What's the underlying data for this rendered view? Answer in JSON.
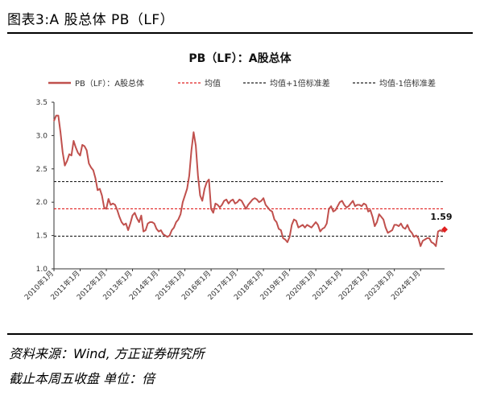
{
  "figure_title": "图表3:A 股总体 PB（LF）",
  "source_line": "资料来源：Wind, 方正证券研究所",
  "note_line": "截止本周五收盘 单位：倍",
  "colors": {
    "pb_line": "#C0504D",
    "mean_line": "#E02020",
    "std_lines": "#222222",
    "last_marker": "#E02020"
  },
  "chart_data": {
    "type": "line",
    "title": "PB（LF）：A股总体",
    "xlabel": "",
    "ylabel": "",
    "ylim": [
      1.0,
      3.5
    ],
    "yticks": [
      "1.0",
      "1.5",
      "2.0",
      "2.5",
      "3.0",
      "3.5"
    ],
    "xticks": [
      "2010年1月",
      "2011年1月",
      "2012年1月",
      "2013年1月",
      "2014年1月",
      "2015年1月",
      "2016年1月",
      "2017年1月",
      "2018年1月",
      "2019年1月",
      "2020年1月",
      "2021年1月",
      "2022年1月",
      "2023年1月",
      "2024年1月"
    ],
    "x_range": [
      "2010-01",
      "2024-12"
    ],
    "grid": false,
    "legend_placement": "top",
    "legend": [
      "PB（LF）：A股总体",
      "均值",
      "均值+1倍标准差",
      "均值-1倍标准差"
    ],
    "series": [
      {
        "name": "PB（LF）：A股总体",
        "style": "solid",
        "points": [
          [
            "2010-01",
            3.22
          ],
          [
            "2010-02",
            3.3
          ],
          [
            "2010-03",
            3.3
          ],
          [
            "2010-04",
            3.05
          ],
          [
            "2010-05",
            2.75
          ],
          [
            "2010-06",
            2.55
          ],
          [
            "2010-07",
            2.62
          ],
          [
            "2010-08",
            2.72
          ],
          [
            "2010-09",
            2.7
          ],
          [
            "2010-10",
            2.92
          ],
          [
            "2010-11",
            2.82
          ],
          [
            "2010-12",
            2.74
          ],
          [
            "2011-01",
            2.7
          ],
          [
            "2011-02",
            2.86
          ],
          [
            "2011-03",
            2.84
          ],
          [
            "2011-04",
            2.78
          ],
          [
            "2011-05",
            2.58
          ],
          [
            "2011-06",
            2.52
          ],
          [
            "2011-07",
            2.48
          ],
          [
            "2011-08",
            2.36
          ],
          [
            "2011-09",
            2.18
          ],
          [
            "2011-10",
            2.2
          ],
          [
            "2011-11",
            2.1
          ],
          [
            "2011-12",
            1.92
          ],
          [
            "2012-01",
            1.9
          ],
          [
            "2012-02",
            2.05
          ],
          [
            "2012-03",
            1.96
          ],
          [
            "2012-04",
            1.98
          ],
          [
            "2012-05",
            1.96
          ],
          [
            "2012-06",
            1.88
          ],
          [
            "2012-07",
            1.78
          ],
          [
            "2012-08",
            1.7
          ],
          [
            "2012-09",
            1.66
          ],
          [
            "2012-10",
            1.68
          ],
          [
            "2012-11",
            1.58
          ],
          [
            "2012-12",
            1.68
          ],
          [
            "2013-01",
            1.8
          ],
          [
            "2013-02",
            1.84
          ],
          [
            "2013-03",
            1.76
          ],
          [
            "2013-04",
            1.7
          ],
          [
            "2013-05",
            1.8
          ],
          [
            "2013-06",
            1.56
          ],
          [
            "2013-07",
            1.58
          ],
          [
            "2013-08",
            1.68
          ],
          [
            "2013-09",
            1.7
          ],
          [
            "2013-10",
            1.7
          ],
          [
            "2013-11",
            1.68
          ],
          [
            "2013-12",
            1.6
          ],
          [
            "2014-01",
            1.56
          ],
          [
            "2014-02",
            1.58
          ],
          [
            "2014-03",
            1.52
          ],
          [
            "2014-04",
            1.5
          ],
          [
            "2014-05",
            1.48
          ],
          [
            "2014-06",
            1.5
          ],
          [
            "2014-07",
            1.58
          ],
          [
            "2014-08",
            1.62
          ],
          [
            "2014-09",
            1.7
          ],
          [
            "2014-10",
            1.74
          ],
          [
            "2014-11",
            1.82
          ],
          [
            "2014-12",
            2.0
          ],
          [
            "2015-01",
            2.1
          ],
          [
            "2015-02",
            2.2
          ],
          [
            "2015-03",
            2.4
          ],
          [
            "2015-04",
            2.78
          ],
          [
            "2015-05",
            3.05
          ],
          [
            "2015-06",
            2.85
          ],
          [
            "2015-07",
            2.4
          ],
          [
            "2015-08",
            2.1
          ],
          [
            "2015-09",
            2.02
          ],
          [
            "2015-10",
            2.2
          ],
          [
            "2015-11",
            2.3
          ],
          [
            "2015-12",
            2.34
          ],
          [
            "2016-01",
            1.9
          ],
          [
            "2016-02",
            1.84
          ],
          [
            "2016-03",
            1.98
          ],
          [
            "2016-04",
            1.96
          ],
          [
            "2016-05",
            1.92
          ],
          [
            "2016-06",
            1.96
          ],
          [
            "2016-07",
            2.02
          ],
          [
            "2016-08",
            2.04
          ],
          [
            "2016-09",
            1.98
          ],
          [
            "2016-10",
            2.02
          ],
          [
            "2016-11",
            2.04
          ],
          [
            "2016-12",
            1.98
          ],
          [
            "2017-01",
            2.0
          ],
          [
            "2017-02",
            2.04
          ],
          [
            "2017-03",
            2.02
          ],
          [
            "2017-04",
            1.96
          ],
          [
            "2017-05",
            1.9
          ],
          [
            "2017-06",
            1.96
          ],
          [
            "2017-07",
            2.0
          ],
          [
            "2017-08",
            2.04
          ],
          [
            "2017-09",
            2.06
          ],
          [
            "2017-10",
            2.04
          ],
          [
            "2017-11",
            2.0
          ],
          [
            "2017-12",
            2.02
          ],
          [
            "2018-01",
            2.06
          ],
          [
            "2018-02",
            1.96
          ],
          [
            "2018-03",
            1.92
          ],
          [
            "2018-04",
            1.88
          ],
          [
            "2018-05",
            1.86
          ],
          [
            "2018-06",
            1.74
          ],
          [
            "2018-07",
            1.7
          ],
          [
            "2018-08",
            1.6
          ],
          [
            "2018-09",
            1.58
          ],
          [
            "2018-10",
            1.46
          ],
          [
            "2018-11",
            1.44
          ],
          [
            "2018-12",
            1.4
          ],
          [
            "2019-01",
            1.48
          ],
          [
            "2019-02",
            1.66
          ],
          [
            "2019-03",
            1.74
          ],
          [
            "2019-04",
            1.72
          ],
          [
            "2019-05",
            1.62
          ],
          [
            "2019-06",
            1.64
          ],
          [
            "2019-07",
            1.66
          ],
          [
            "2019-08",
            1.62
          ],
          [
            "2019-09",
            1.66
          ],
          [
            "2019-10",
            1.64
          ],
          [
            "2019-11",
            1.62
          ],
          [
            "2019-12",
            1.66
          ],
          [
            "2020-01",
            1.7
          ],
          [
            "2020-02",
            1.66
          ],
          [
            "2020-03",
            1.56
          ],
          [
            "2020-04",
            1.6
          ],
          [
            "2020-05",
            1.62
          ],
          [
            "2020-06",
            1.68
          ],
          [
            "2020-07",
            1.9
          ],
          [
            "2020-08",
            1.94
          ],
          [
            "2020-09",
            1.86
          ],
          [
            "2020-10",
            1.88
          ],
          [
            "2020-11",
            1.94
          ],
          [
            "2020-12",
            2.0
          ],
          [
            "2021-01",
            2.02
          ],
          [
            "2021-02",
            1.96
          ],
          [
            "2021-03",
            1.92
          ],
          [
            "2021-04",
            1.94
          ],
          [
            "2021-05",
            1.98
          ],
          [
            "2021-06",
            2.02
          ],
          [
            "2021-07",
            1.94
          ],
          [
            "2021-08",
            1.96
          ],
          [
            "2021-09",
            1.96
          ],
          [
            "2021-10",
            1.94
          ],
          [
            "2021-11",
            1.98
          ],
          [
            "2021-12",
            1.96
          ],
          [
            "2022-01",
            1.86
          ],
          [
            "2022-02",
            1.88
          ],
          [
            "2022-03",
            1.78
          ],
          [
            "2022-04",
            1.64
          ],
          [
            "2022-05",
            1.7
          ],
          [
            "2022-06",
            1.82
          ],
          [
            "2022-07",
            1.78
          ],
          [
            "2022-08",
            1.74
          ],
          [
            "2022-09",
            1.62
          ],
          [
            "2022-10",
            1.54
          ],
          [
            "2022-11",
            1.56
          ],
          [
            "2022-12",
            1.58
          ],
          [
            "2023-01",
            1.66
          ],
          [
            "2023-02",
            1.66
          ],
          [
            "2023-03",
            1.64
          ],
          [
            "2023-04",
            1.68
          ],
          [
            "2023-05",
            1.62
          ],
          [
            "2023-06",
            1.6
          ],
          [
            "2023-07",
            1.66
          ],
          [
            "2023-08",
            1.58
          ],
          [
            "2023-09",
            1.54
          ],
          [
            "2023-10",
            1.48
          ],
          [
            "2023-11",
            1.5
          ],
          [
            "2023-12",
            1.46
          ],
          [
            "2024-01",
            1.34
          ],
          [
            "2024-02",
            1.42
          ],
          [
            "2024-03",
            1.44
          ],
          [
            "2024-04",
            1.46
          ],
          [
            "2024-05",
            1.46
          ],
          [
            "2024-06",
            1.4
          ],
          [
            "2024-07",
            1.38
          ],
          [
            "2024-08",
            1.34
          ],
          [
            "2024-09",
            1.56
          ],
          [
            "2024-10",
            1.58
          ],
          [
            "2024-11",
            1.56
          ],
          [
            "2024-12",
            1.59
          ]
        ]
      },
      {
        "name": "均值",
        "style": "dashed",
        "constant": 1.9
      },
      {
        "name": "均值+1倍标准差",
        "style": "dashed",
        "constant": 2.31
      },
      {
        "name": "均值-1倍标准差",
        "style": "dashed",
        "constant": 1.49
      }
    ],
    "annotations": [
      {
        "text": "1.59",
        "x": "2024-12",
        "y": 1.59
      }
    ]
  }
}
